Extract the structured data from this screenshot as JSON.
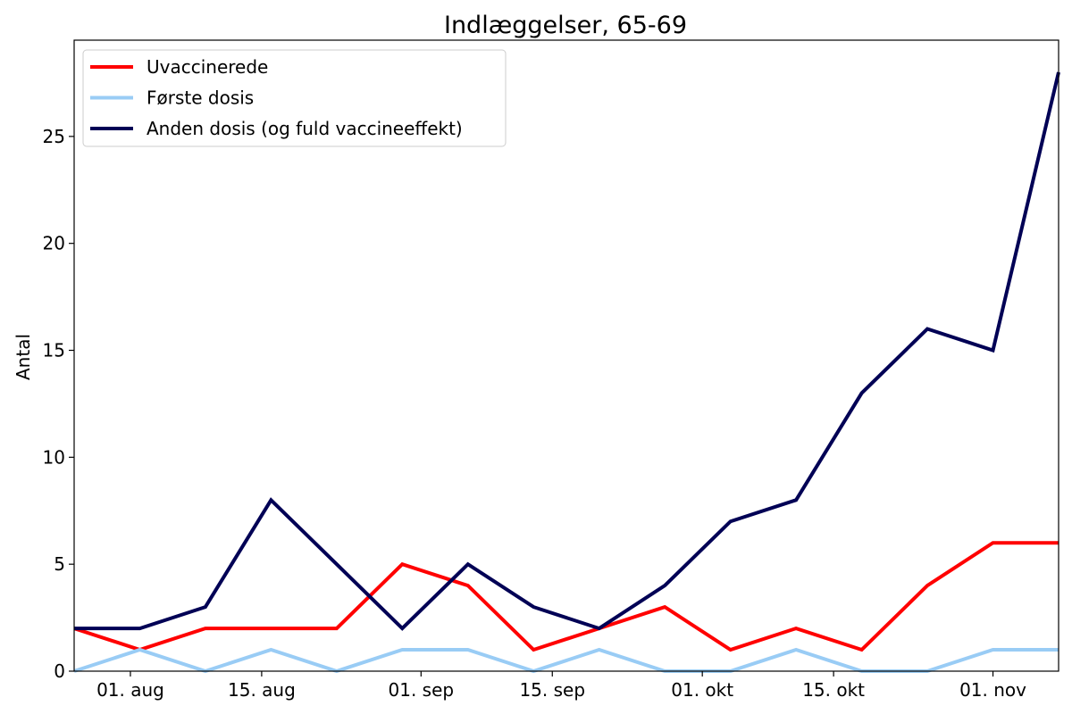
{
  "chart_data": {
    "type": "line",
    "title": "Indlæggelser, 65-69",
    "xlabel": "",
    "ylabel": "Antal",
    "x": [
      "2021-07-26",
      "2021-08-02",
      "2021-08-09",
      "2021-08-16",
      "2021-08-23",
      "2021-08-30",
      "2021-09-06",
      "2021-09-13",
      "2021-09-20",
      "2021-09-27",
      "2021-10-04",
      "2021-10-11",
      "2021-10-18",
      "2021-10-25",
      "2021-11-01",
      "2021-11-08"
    ],
    "xlim": [
      "2021-07-26",
      "2021-11-08"
    ],
    "xticks": [
      {
        "date": "2021-08-01",
        "label": "01. aug"
      },
      {
        "date": "2021-08-15",
        "label": "15. aug"
      },
      {
        "date": "2021-09-01",
        "label": "01. sep"
      },
      {
        "date": "2021-09-15",
        "label": "15. sep"
      },
      {
        "date": "2021-10-01",
        "label": "01. okt"
      },
      {
        "date": "2021-10-15",
        "label": "15. okt"
      },
      {
        "date": "2021-11-01",
        "label": "01. nov"
      }
    ],
    "ylim": [
      0,
      29.5
    ],
    "yticks": [
      0,
      5,
      10,
      15,
      20,
      25
    ],
    "grid": false,
    "legend": "top-left",
    "series": [
      {
        "name": "Uvaccinerede",
        "color": "#ff0000",
        "values": [
          2,
          1,
          2,
          2,
          2,
          5,
          4,
          1,
          2,
          3,
          1,
          2,
          1,
          4,
          6,
          6
        ]
      },
      {
        "name": "Første dosis",
        "color": "#99ccf5",
        "values": [
          0,
          1,
          0,
          1,
          0,
          1,
          1,
          0,
          1,
          0,
          0,
          1,
          0,
          0,
          1,
          1
        ]
      },
      {
        "name": "Anden dosis (og fuld vaccineeffekt)",
        "color": "#000055",
        "values": [
          2,
          2,
          3,
          8,
          5,
          2,
          5,
          3,
          2,
          4,
          7,
          8,
          13,
          16,
          15,
          28
        ]
      }
    ]
  }
}
